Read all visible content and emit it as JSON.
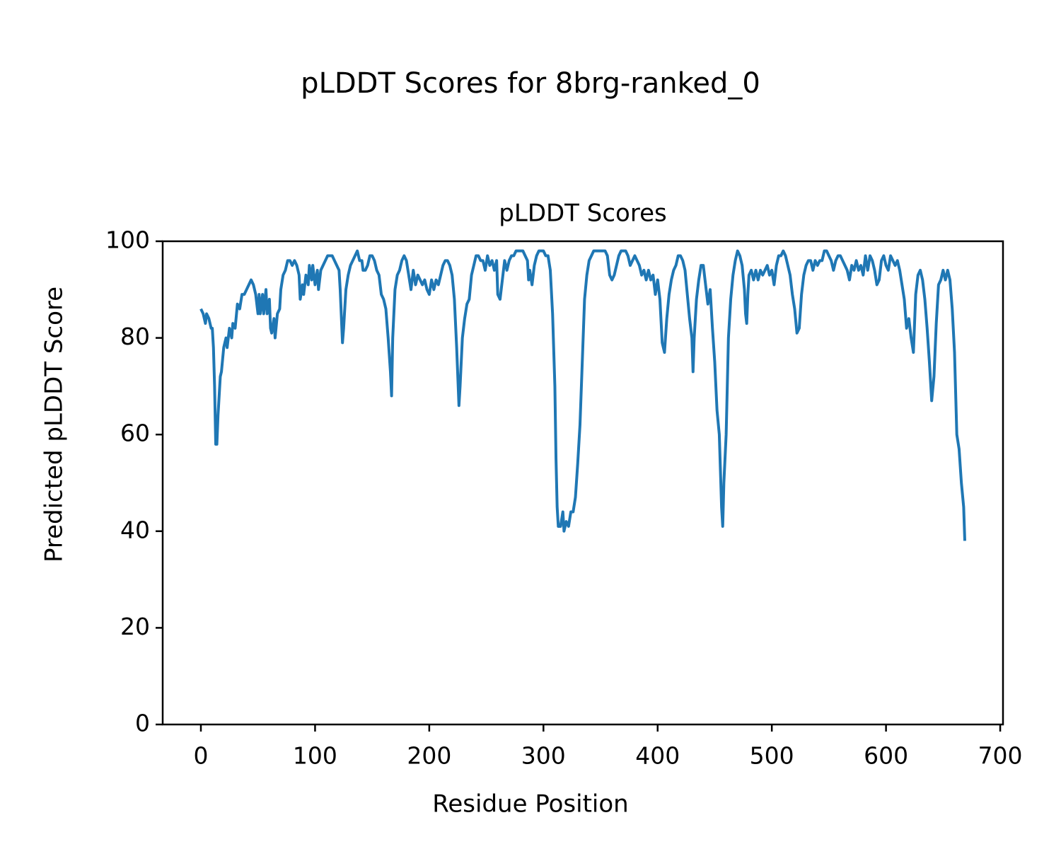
{
  "chart_data": {
    "type": "line",
    "title": "pLDDT Scores for 8brg-ranked_0",
    "subtitle": "pLDDT Scores",
    "xlabel": "Residue Position",
    "ylabel": "Predicted pLDDT Score",
    "color": "#1f77b4",
    "xlim": [
      -33.45,
      702.45
    ],
    "ylim": [
      0,
      100
    ],
    "xticks": [
      0,
      100,
      200,
      300,
      400,
      500,
      600,
      700
    ],
    "yticks": [
      0,
      20,
      40,
      60,
      80,
      100
    ],
    "x": [
      0,
      2,
      4,
      5,
      7,
      9,
      10,
      11,
      12,
      13,
      14,
      15,
      17,
      18,
      20,
      22,
      23,
      25,
      27,
      28,
      30,
      32,
      34,
      36,
      38,
      40,
      42,
      44,
      46,
      48,
      50,
      51,
      52,
      54,
      55,
      57,
      58,
      60,
      61,
      62,
      64,
      65,
      67,
      69,
      70,
      72,
      74,
      76,
      78,
      80,
      82,
      84,
      86,
      87,
      89,
      90,
      92,
      94,
      95,
      97,
      98,
      100,
      102,
      103,
      105,
      107,
      109,
      111,
      113,
      115,
      117,
      119,
      121,
      122,
      124,
      125,
      127,
      129,
      131,
      133,
      135,
      137,
      139,
      141,
      142,
      144,
      146,
      148,
      150,
      152,
      154,
      156,
      158,
      160,
      162,
      164,
      166,
      167,
      168,
      170,
      172,
      174,
      176,
      178,
      180,
      182,
      184,
      186,
      188,
      190,
      192,
      194,
      196,
      198,
      200,
      202,
      204,
      206,
      208,
      210,
      212,
      214,
      216,
      218,
      220,
      222,
      224,
      226,
      227,
      229,
      231,
      233,
      235,
      237,
      239,
      241,
      243,
      245,
      247,
      249,
      251,
      253,
      255,
      257,
      259,
      260,
      262,
      264,
      266,
      268,
      270,
      272,
      274,
      276,
      278,
      280,
      282,
      284,
      286,
      287,
      288,
      290,
      292,
      294,
      296,
      298,
      300,
      302,
      304,
      306,
      308,
      310,
      311,
      312,
      313,
      315,
      317,
      318,
      320,
      322,
      324,
      326,
      328,
      330,
      332,
      334,
      336,
      338,
      340,
      342,
      344,
      346,
      348,
      350,
      352,
      354,
      356,
      358,
      360,
      362,
      364,
      366,
      368,
      370,
      372,
      374,
      376,
      378,
      380,
      382,
      384,
      386,
      388,
      390,
      392,
      394,
      396,
      398,
      400,
      402,
      404,
      406,
      408,
      410,
      412,
      414,
      416,
      418,
      420,
      422,
      424,
      426,
      428,
      430,
      431,
      432,
      434,
      436,
      438,
      440,
      442,
      444,
      446,
      448,
      450,
      452,
      454,
      456,
      457,
      458,
      460,
      462,
      464,
      466,
      468,
      470,
      472,
      474,
      476,
      477,
      478,
      479,
      480,
      482,
      484,
      486,
      488,
      490,
      492,
      494,
      496,
      498,
      500,
      502,
      504,
      506,
      508,
      510,
      512,
      514,
      516,
      518,
      520,
      522,
      524,
      526,
      528,
      530,
      532,
      534,
      536,
      538,
      540,
      542,
      544,
      546,
      548,
      550,
      552,
      554,
      556,
      558,
      560,
      562,
      564,
      566,
      568,
      570,
      572,
      574,
      576,
      578,
      580,
      582,
      584,
      586,
      588,
      590,
      592,
      594,
      596,
      598,
      600,
      602,
      604,
      606,
      608,
      610,
      612,
      614,
      616,
      618,
      620,
      622,
      624,
      626,
      628,
      630,
      632,
      634,
      636,
      638,
      640,
      642,
      644,
      646,
      648,
      650,
      652,
      654,
      656,
      658,
      660,
      662,
      664,
      666,
      668,
      669
    ],
    "values": [
      86,
      85,
      83,
      85,
      84,
      82,
      82,
      78,
      70,
      58,
      58,
      64,
      72,
      73,
      78,
      80,
      78,
      82,
      80,
      83,
      82,
      87,
      86,
      89,
      89,
      90,
      91,
      92,
      91,
      89,
      85,
      89,
      85,
      89,
      85,
      90,
      85,
      88,
      82,
      81,
      84,
      80,
      85,
      86,
      90,
      93,
      94,
      96,
      96,
      95,
      96,
      95,
      93,
      88,
      91,
      89,
      93,
      91,
      95,
      92,
      95,
      91,
      94,
      90,
      94,
      95,
      96,
      97,
      97,
      97,
      96,
      95,
      94,
      90,
      79,
      82,
      90,
      93,
      95,
      96,
      97,
      98,
      96,
      96,
      94,
      94,
      95,
      97,
      97,
      96,
      94,
      93,
      89,
      88,
      86,
      80,
      73,
      68,
      80,
      90,
      93,
      94,
      96,
      97,
      96,
      93,
      90,
      94,
      91,
      93,
      92,
      91,
      92,
      90,
      89,
      92,
      90,
      92,
      91,
      93,
      95,
      96,
      96,
      95,
      93,
      88,
      78,
      66,
      70,
      80,
      84,
      87,
      88,
      93,
      95,
      97,
      97,
      96,
      96,
      94,
      97,
      95,
      96,
      94,
      96,
      89,
      88,
      92,
      96,
      94,
      96,
      97,
      97,
      98,
      98,
      98,
      98,
      97,
      96,
      92,
      94,
      91,
      95,
      97,
      98,
      98,
      98,
      97,
      97,
      94,
      85,
      70,
      55,
      45,
      41,
      41,
      44,
      40,
      42,
      41,
      44,
      44,
      47,
      54,
      62,
      75,
      88,
      93,
      96,
      97,
      98,
      98,
      98,
      98,
      98,
      98,
      97,
      93,
      92,
      93,
      95,
      97,
      98,
      98,
      98,
      97,
      95,
      96,
      97,
      96,
      95,
      93,
      94,
      92,
      94,
      92,
      93,
      89,
      92,
      88,
      79,
      77,
      84,
      89,
      92,
      94,
      95,
      97,
      97,
      96,
      94,
      89,
      84,
      80,
      73,
      80,
      88,
      92,
      95,
      95,
      91,
      87,
      90,
      82,
      75,
      65,
      60,
      45,
      41,
      50,
      60,
      80,
      88,
      93,
      96,
      98,
      97,
      95,
      90,
      85,
      83,
      89,
      93,
      94,
      92,
      94,
      92,
      94,
      93,
      94,
      95,
      93,
      94,
      91,
      95,
      97,
      97,
      98,
      97,
      95,
      93,
      89,
      86,
      81,
      82,
      89,
      93,
      95,
      96,
      96,
      94,
      96,
      95,
      96,
      96,
      98,
      98,
      97,
      96,
      94,
      96,
      97,
      97,
      96,
      95,
      94,
      92,
      95,
      94,
      96,
      94,
      95,
      93,
      97,
      94,
      97,
      96,
      94,
      91,
      92,
      96,
      97,
      95,
      94,
      97,
      96,
      95,
      96,
      94,
      91,
      88,
      82,
      84,
      80,
      77,
      89,
      93,
      94,
      92,
      88,
      82,
      75,
      67,
      72,
      83,
      91,
      92,
      94,
      92,
      94,
      92,
      86,
      77,
      60,
      57,
      50,
      45,
      38
    ]
  }
}
